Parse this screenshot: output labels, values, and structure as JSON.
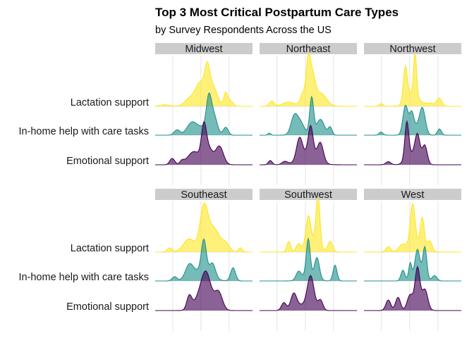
{
  "chart_data": {
    "type": "ridgeline",
    "title": "Top 3 Most Critical Postpartum Care Types",
    "subtitle": "by Survey Respondents Across the US",
    "categories": [
      "Lactation support",
      "In-home help with care tasks",
      "Emotional support"
    ],
    "colors": {
      "Lactation support": "#FDE725",
      "In-home help with care tasks": "#21918C",
      "Emotional support": "#440154"
    },
    "grid": true,
    "legend": "none",
    "x_axis_ticks_shown": false,
    "panels": [
      {
        "name": "Midwest",
        "series": [
          {
            "category": "Lactation support",
            "ridges": [
              [
                -0.8,
                0.1,
                0.03
              ],
              [
                -0.3,
                0.1,
                0.12
              ],
              [
                0.0,
                0.15,
                0.35
              ],
              [
                0.07,
                0.05,
                0.45
              ],
              [
                0.2,
                0.08,
                0.25
              ],
              [
                0.45,
                0.04,
                0.25
              ],
              [
                0.55,
                0.05,
                0.1
              ],
              [
                -0.1,
                0.08,
                0.15
              ]
            ]
          },
          {
            "category": "In-home help with care tasks",
            "ridges": [
              [
                -0.55,
                0.06,
                0.1
              ],
              [
                -0.25,
                0.1,
                0.22
              ],
              [
                0.1,
                0.05,
                0.55
              ],
              [
                0.2,
                0.07,
                0.35
              ],
              [
                0.45,
                0.05,
                0.15
              ],
              [
                0.0,
                0.14,
                0.15
              ]
            ]
          },
          {
            "category": "Emotional support",
            "ridges": [
              [
                -0.65,
                0.05,
                0.12
              ],
              [
                -0.45,
                0.04,
                0.06
              ],
              [
                -0.2,
                0.13,
                0.25
              ],
              [
                0.0,
                0.05,
                0.6
              ],
              [
                0.1,
                0.08,
                0.3
              ],
              [
                0.32,
                0.08,
                0.35
              ]
            ]
          }
        ]
      },
      {
        "name": "Northeast",
        "series": [
          {
            "category": "Lactation support",
            "ridges": [
              [
                -0.75,
                0.05,
                0.1
              ],
              [
                -0.4,
                0.12,
                0.08
              ],
              [
                0.0,
                0.04,
                0.7
              ],
              [
                0.08,
                0.06,
                0.55
              ],
              [
                0.25,
                0.12,
                0.25
              ],
              [
                -0.1,
                0.06,
                0.25
              ]
            ]
          },
          {
            "category": "In-home help with care tasks",
            "ridges": [
              [
                -0.8,
                0.03,
                0.04
              ],
              [
                -0.3,
                0.06,
                0.2
              ],
              [
                -0.2,
                0.1,
                0.3
              ],
              [
                0.07,
                0.04,
                0.7
              ],
              [
                0.25,
                0.08,
                0.3
              ],
              [
                0.45,
                0.04,
                0.15
              ]
            ]
          },
          {
            "category": "Emotional support",
            "ridges": [
              [
                -0.78,
                0.04,
                0.08
              ],
              [
                -0.48,
                0.06,
                0.06
              ],
              [
                -0.18,
                0.06,
                0.4
              ],
              [
                0.05,
                0.05,
                0.55
              ],
              [
                0.25,
                0.06,
                0.35
              ],
              [
                0.0,
                0.18,
                0.2
              ]
            ]
          }
        ]
      },
      {
        "name": "Northwest",
        "series": [
          {
            "category": "Lactation support",
            "ridges": [
              [
                -0.65,
                0.04,
                0.05
              ],
              [
                -0.15,
                0.04,
                0.65
              ],
              [
                0.05,
                0.03,
                0.8
              ],
              [
                0.0,
                0.12,
                0.25
              ],
              [
                0.55,
                0.05,
                0.15
              ],
              [
                0.35,
                0.1,
                0.06
              ]
            ]
          },
          {
            "category": "In-home help with care tasks",
            "ridges": [
              [
                -0.65,
                0.04,
                0.06
              ],
              [
                -0.15,
                0.05,
                0.5
              ],
              [
                -0.02,
                0.04,
                0.25
              ],
              [
                0.2,
                0.06,
                0.5
              ],
              [
                0.55,
                0.04,
                0.12
              ],
              [
                0.0,
                0.1,
                0.2
              ]
            ]
          },
          {
            "category": "Emotional support",
            "ridges": [
              [
                -0.5,
                0.05,
                0.06
              ],
              [
                -0.12,
                0.04,
                0.7
              ],
              [
                0.1,
                0.05,
                0.45
              ],
              [
                0.25,
                0.05,
                0.35
              ],
              [
                0.0,
                0.12,
                0.2
              ]
            ]
          }
        ]
      },
      {
        "name": "Southeast",
        "series": [
          {
            "category": "Lactation support",
            "ridges": [
              [
                -0.7,
                0.05,
                0.08
              ],
              [
                -0.3,
                0.12,
                0.25
              ],
              [
                0.0,
                0.08,
                0.8
              ],
              [
                0.2,
                0.12,
                0.45
              ],
              [
                0.45,
                0.08,
                0.15
              ],
              [
                0.75,
                0.04,
                0.08
              ]
            ]
          },
          {
            "category": "In-home help with care tasks",
            "ridges": [
              [
                -0.6,
                0.05,
                0.08
              ],
              [
                -0.3,
                0.08,
                0.25
              ],
              [
                0.0,
                0.05,
                0.6
              ],
              [
                0.18,
                0.06,
                0.25
              ],
              [
                0.6,
                0.05,
                0.25
              ],
              [
                -0.05,
                0.18,
                0.2
              ]
            ]
          },
          {
            "category": "Emotional support",
            "ridges": [
              [
                -0.3,
                0.05,
                0.25
              ],
              [
                0.05,
                0.1,
                0.65
              ],
              [
                0.3,
                0.08,
                0.35
              ],
              [
                -0.1,
                0.12,
                0.2
              ]
            ]
          }
        ]
      },
      {
        "name": "Southwest",
        "series": [
          {
            "category": "Lactation support",
            "ridges": [
              [
                -0.4,
                0.04,
                0.2
              ],
              [
                -0.2,
                0.05,
                0.15
              ],
              [
                0.0,
                0.05,
                0.55
              ],
              [
                0.2,
                0.04,
                0.95
              ],
              [
                0.45,
                0.05,
                0.2
              ],
              [
                0.1,
                0.12,
                0.2
              ]
            ]
          },
          {
            "category": "In-home help with care tasks",
            "ridges": [
              [
                -0.2,
                0.05,
                0.15
              ],
              [
                0.0,
                0.04,
                0.7
              ],
              [
                0.18,
                0.05,
                0.4
              ],
              [
                0.55,
                0.04,
                0.3
              ],
              [
                0.0,
                0.14,
                0.1
              ]
            ]
          },
          {
            "category": "Emotional support",
            "ridges": [
              [
                -0.5,
                0.05,
                0.15
              ],
              [
                -0.3,
                0.06,
                0.3
              ],
              [
                0.05,
                0.07,
                0.65
              ],
              [
                0.25,
                0.05,
                0.2
              ],
              [
                -0.15,
                0.1,
                0.1
              ]
            ]
          }
        ]
      },
      {
        "name": "West",
        "series": [
          {
            "category": "Lactation support",
            "ridges": [
              [
                -0.5,
                0.05,
                0.1
              ],
              [
                -0.2,
                0.08,
                0.15
              ],
              [
                0.0,
                0.05,
                0.8
              ],
              [
                0.2,
                0.04,
                0.55
              ],
              [
                0.35,
                0.05,
                0.2
              ],
              [
                0.1,
                0.12,
                0.15
              ]
            ]
          },
          {
            "category": "In-home help with care tasks",
            "ridges": [
              [
                -0.2,
                0.04,
                0.2
              ],
              [
                -0.05,
                0.03,
                0.3
              ],
              [
                0.1,
                0.05,
                0.5
              ],
              [
                0.25,
                0.04,
                0.6
              ],
              [
                0.45,
                0.05,
                0.1
              ],
              [
                0.1,
                0.12,
                0.1
              ]
            ]
          },
          {
            "category": "Emotional support",
            "ridges": [
              [
                -0.5,
                0.05,
                0.2
              ],
              [
                -0.3,
                0.05,
                0.25
              ],
              [
                -0.05,
                0.06,
                0.3
              ],
              [
                0.1,
                0.05,
                0.8
              ],
              [
                0.25,
                0.06,
                0.4
              ]
            ]
          }
        ]
      }
    ]
  }
}
